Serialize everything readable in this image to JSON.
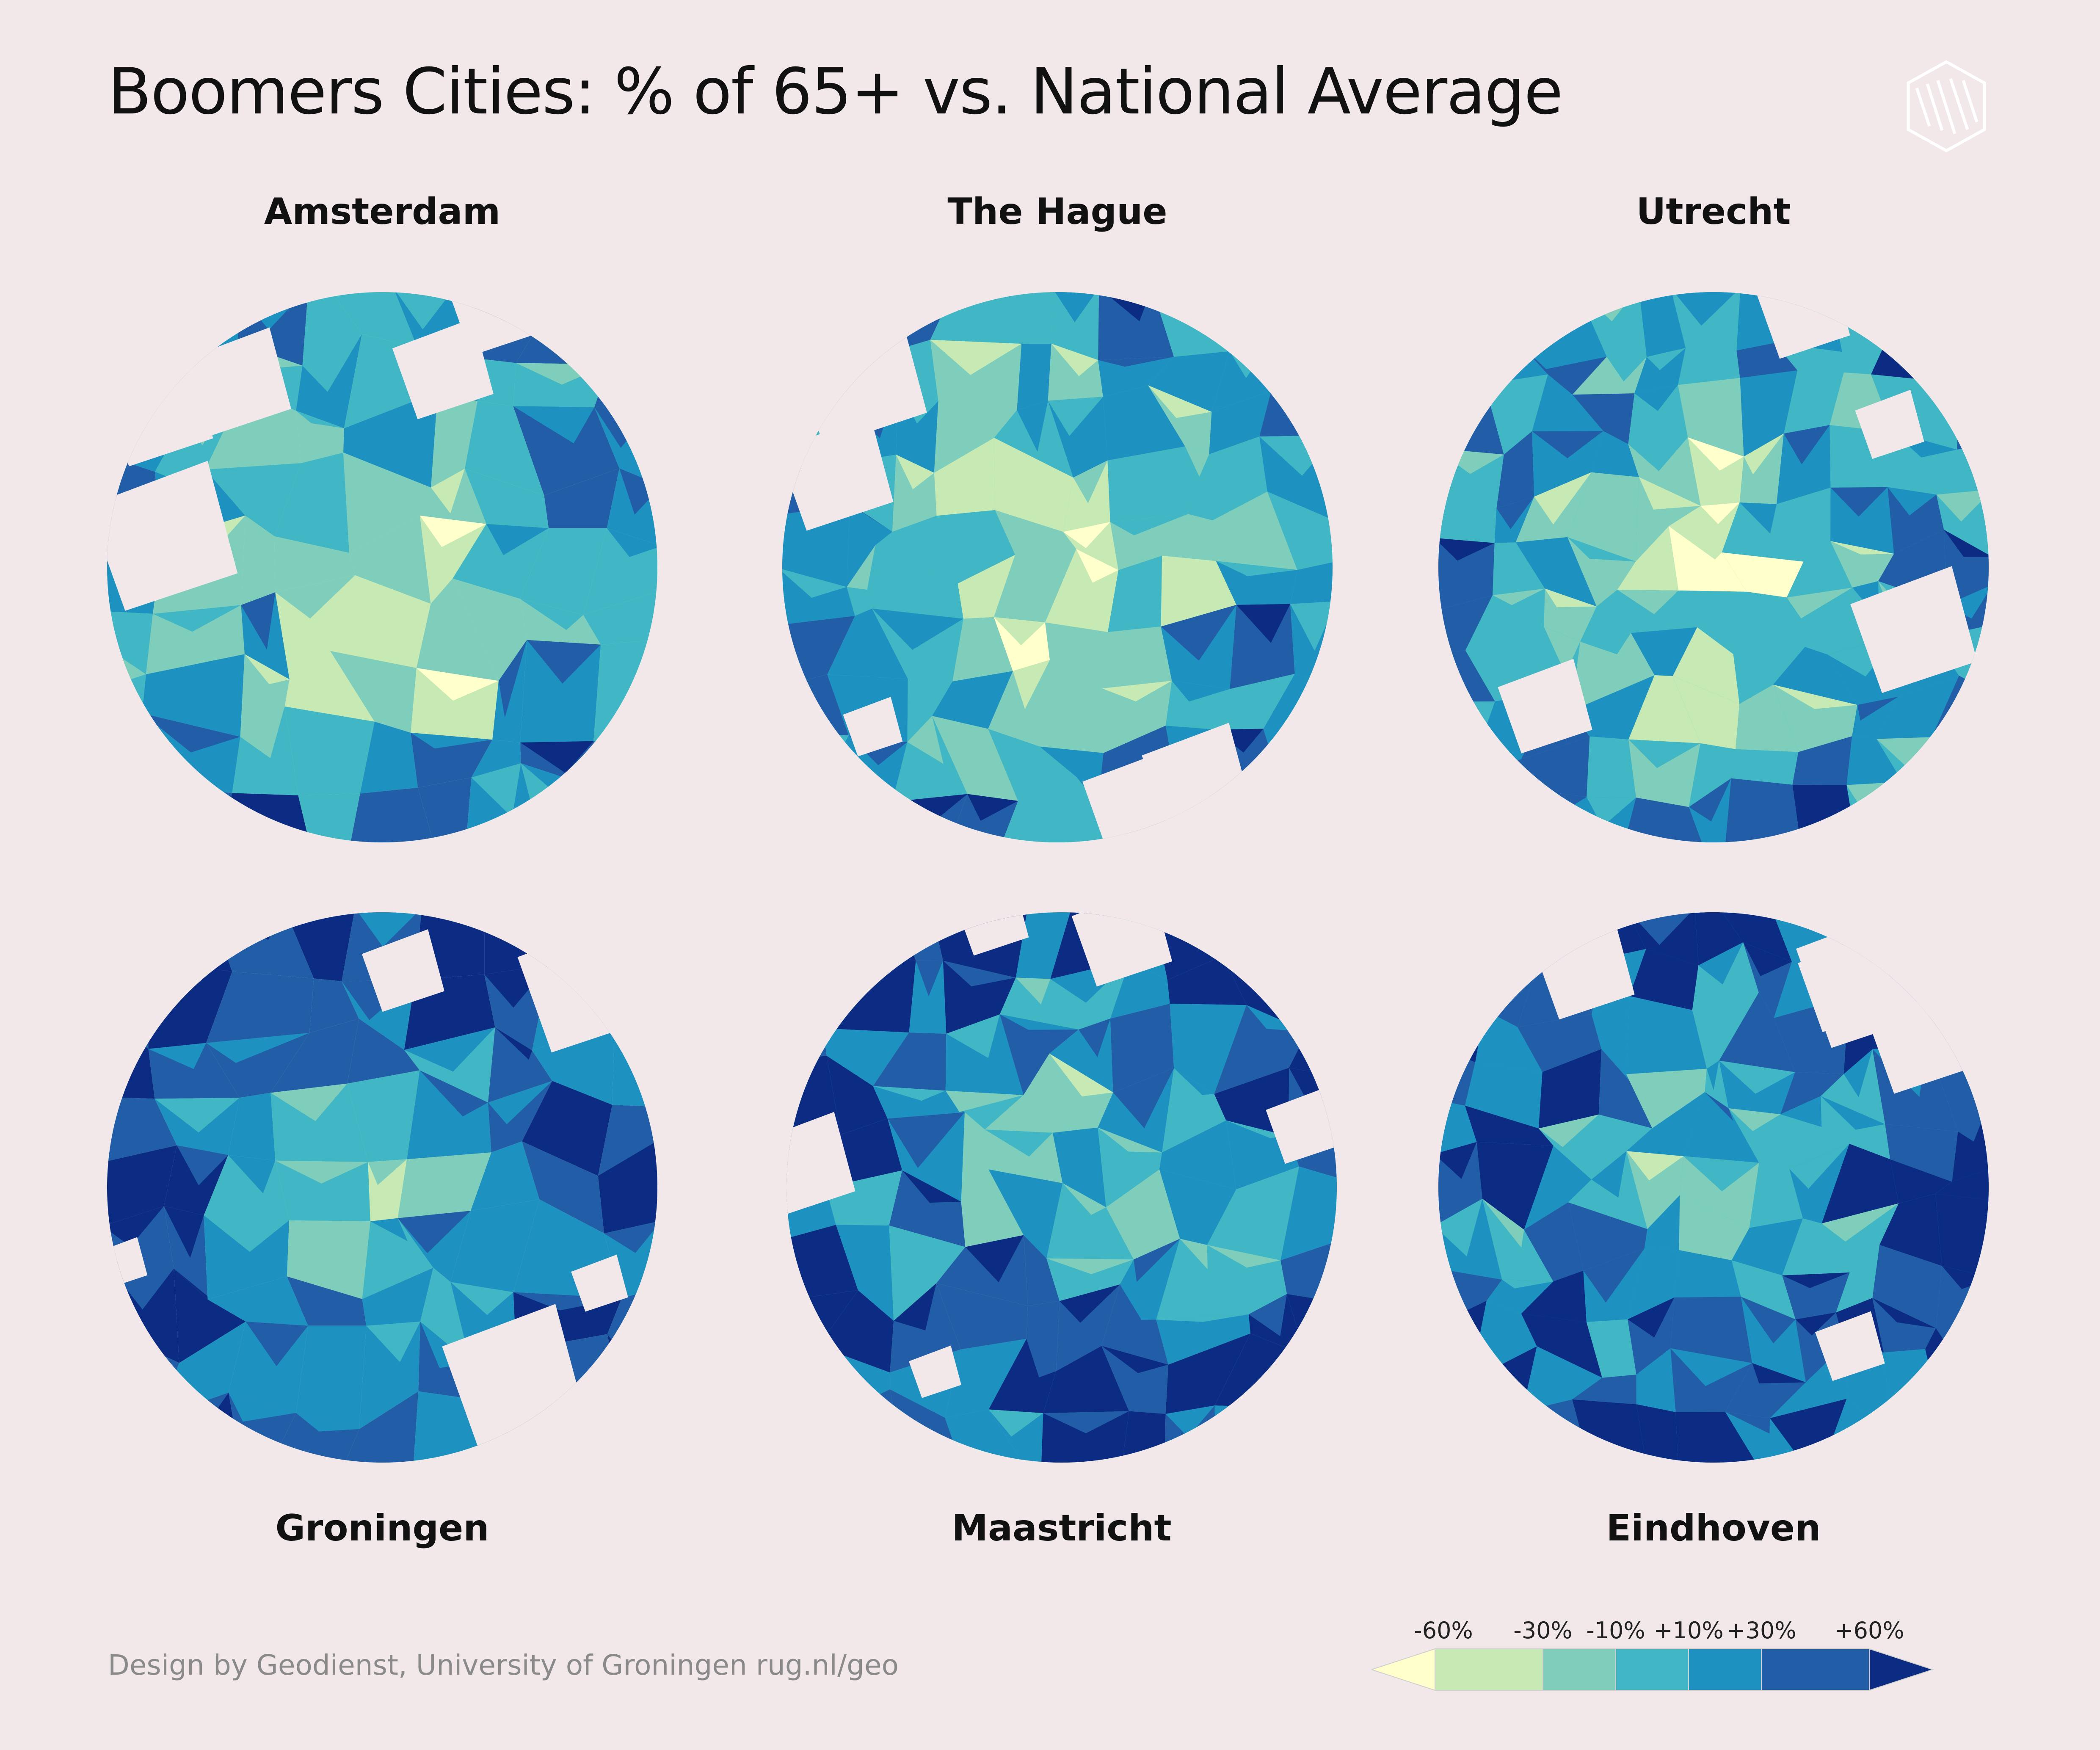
{
  "title": "Boomers Cities: % of 65+ vs. National Average",
  "logo_icon": "geodienst-hexagon-logo",
  "cities": [
    {
      "name": "Amsterdam",
      "seed": 11
    },
    {
      "name": "The Hague",
      "seed": 23
    },
    {
      "name": "Utrecht",
      "seed": 37
    },
    {
      "name": "Groningen",
      "seed": 41
    },
    {
      "name": "Maastricht",
      "seed": 53
    },
    {
      "name": "Eindhoven",
      "seed": 67
    }
  ],
  "credit": "Design by Geodienst, University of Groningen rug.nl/geo",
  "legend": {
    "labels": [
      "-60%",
      "-30%",
      "-10%",
      "+10%",
      "+30%",
      "+60%"
    ],
    "colors": [
      "#ffffcc",
      "#c7e9b4",
      "#7fcdbb",
      "#41b6c4",
      "#1d91c0",
      "#225ea8",
      "#0c2c84"
    ]
  }
}
